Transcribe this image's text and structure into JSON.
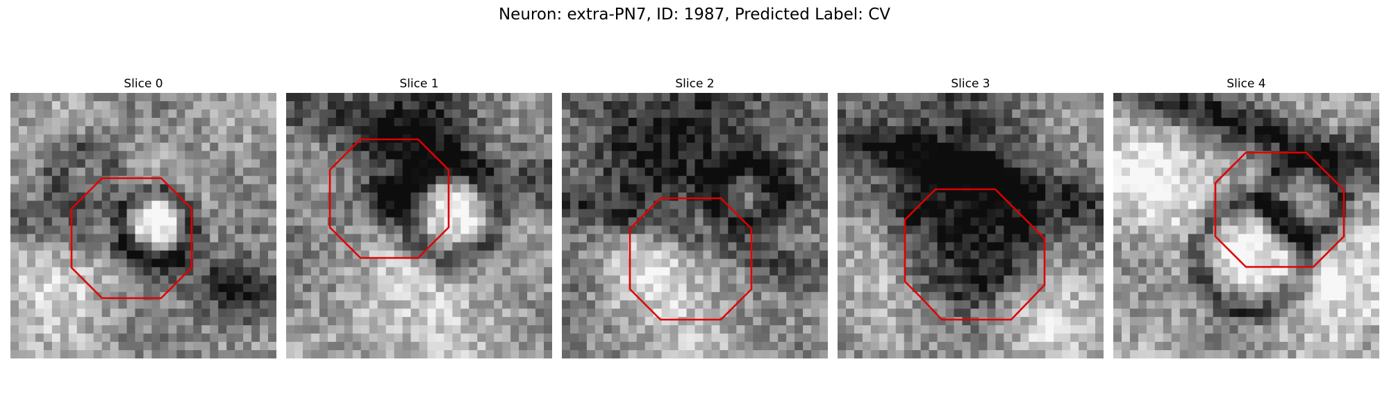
{
  "figure": {
    "title": "Neuron: extra-PN7, ID: 1987, Predicted Label: CV"
  },
  "panels": [
    {
      "title": "Slice 0"
    },
    {
      "title": "Slice 1"
    },
    {
      "title": "Slice 2"
    },
    {
      "title": "Slice 3"
    },
    {
      "title": "Slice 4"
    }
  ],
  "colors": {
    "outline": "#e00000",
    "background": "#ffffff"
  }
}
